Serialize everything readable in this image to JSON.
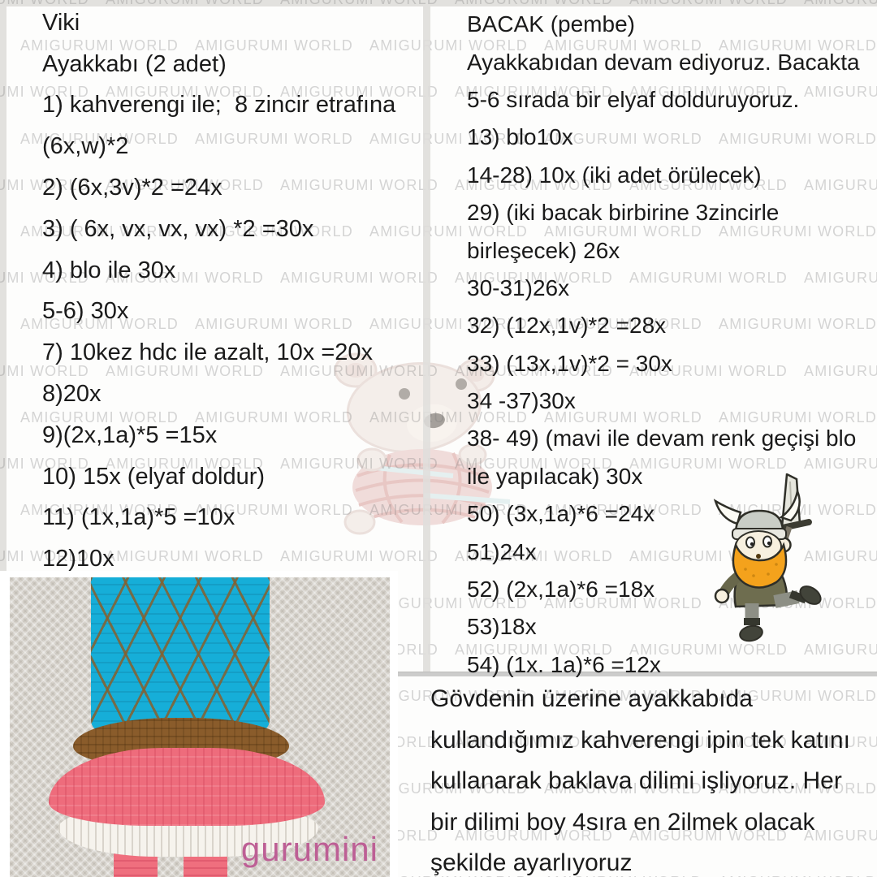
{
  "watermark": {
    "text": "AMIGURUMI WORLD"
  },
  "left_column": {
    "lines": [
      "Viki",
      "Ayakkabı (2 adet)",
      "1) kahverengi ile;  8 zincir etrafına",
      "(6x,w)*2",
      "2) (6x,3v)*2 =24x",
      "3) ( 6x, vx, vx, vx) *2 =30x",
      "4) blo ile 30x",
      "5-6) 30x",
      "7) 10kez hdc ile azalt, 10x =20x",
      "8)20x",
      "9)(2x,1a)*5 =15x",
      "10) 15x (elyaf doldur)",
      "11) (1x,1a)*5 =10x",
      "12)10x"
    ]
  },
  "right_column": {
    "lines": [
      "BACAK (pembe)",
      "Ayakkabıdan devam ediyoruz. Bacakta",
      "5-6 sırada bir elyaf dolduruyoruz.",
      "13) blo10x",
      "14-28) 10x (iki adet örülecek)",
      "29) (iki bacak birbirine 3zincirle",
      "birleşecek) 26x",
      "30-31)26x",
      "32) (12x,1v)*2 =28x",
      "33) (13x,1v)*2 = 30x",
      "34 -37)30x",
      "38- 49) (mavi ile devam renk geçişi blo",
      "ile yapılacak) 30x",
      "50) (3x,1a)*6 =24x",
      "51)24x",
      "52) (2x,1a)*6 =18x",
      "53)18x",
      "54) (1x. 1a)*6 =12x"
    ]
  },
  "bottom_note": {
    "lines": [
      "Gövdenin üzerine ayakkabıda",
      "kullandığımız kahverengi ipin tek katını",
      "kullanarak baklava dilimi işliyoruz. Her",
      "bir dilimi boy 4sıra en 2ilmek olacak",
      "şekilde ayarlıyoruz"
    ]
  },
  "photo": {
    "credit": "gurumini",
    "colors": {
      "doll_blue": "#16aed8",
      "doll_brown": "#8a5c2b",
      "doll_pink": "#ee6c7c",
      "doll_white": "#f6f3ed",
      "credit_pink": "#bd5f95"
    }
  },
  "illustrations": {
    "viking": "viking-cartoon-with-sword",
    "bear": "faded-amigurumi-bear-with-yarn-ball"
  }
}
